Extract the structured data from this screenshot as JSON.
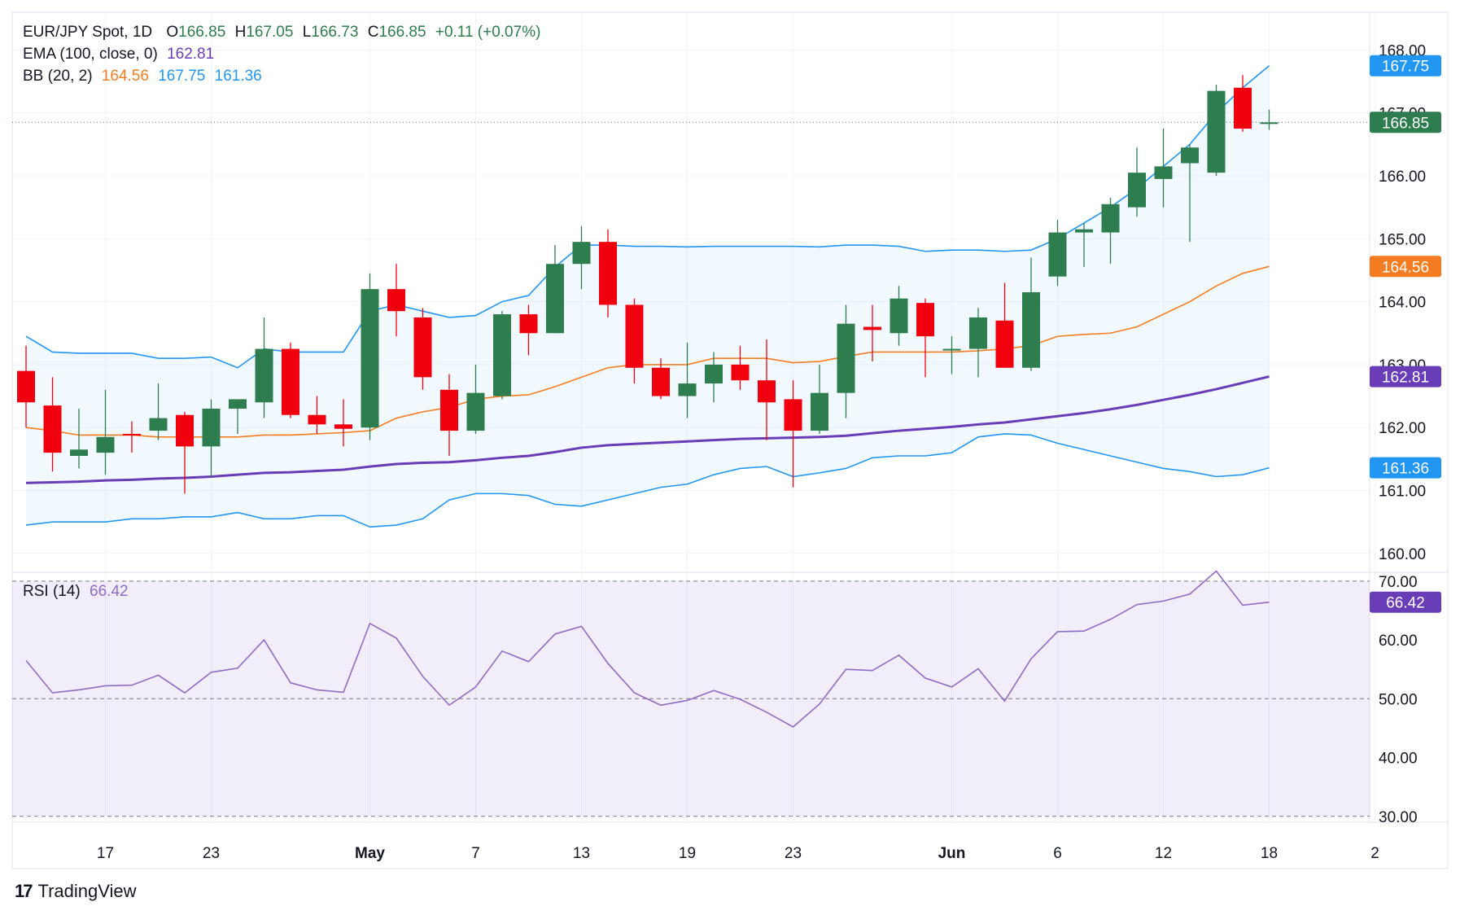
{
  "legend": {
    "symbol": "EUR/JPY Spot, 1D",
    "o_label": "O",
    "o_value": "166.85",
    "h_label": "H",
    "h_value": "167.05",
    "l_label": "L",
    "l_value": "166.73",
    "c_label": "C",
    "c_value": "166.85",
    "change": "+0.11 (+0.07%)",
    "ema_label": "EMA (100, close, 0)",
    "ema_value": "162.81",
    "bb_label": "BB (20, 2)",
    "bb_mid": "164.56",
    "bb_upper": "167.75",
    "bb_lower": "161.36",
    "rsi_label": "RSI (14)",
    "rsi_value": "66.42"
  },
  "footer": {
    "brand": "TradingView",
    "logo_text": "17"
  },
  "colors": {
    "up": "#2e7d4f",
    "down": "#f0000f",
    "ema": "#6a3db8",
    "bb_mid": "#f57c20",
    "bb_band": "#2196f3",
    "rsi": "#8e6bc4",
    "green_text": "#2e7d4f"
  },
  "chart_data": [
    {
      "type": "candlestick",
      "title": "EUR/JPY Spot, 1D",
      "ylim": [
        159.7,
        168.6
      ],
      "y_ticks": [
        "160.00",
        "161.00",
        "162.00",
        "163.00",
        "164.00",
        "165.00",
        "166.00",
        "167.00",
        "168.00"
      ],
      "x_ticks": [
        {
          "i": 3,
          "label": "17"
        },
        {
          "i": 7,
          "label": "23"
        },
        {
          "i": 13,
          "label": "May"
        },
        {
          "i": 17,
          "label": "7"
        },
        {
          "i": 21,
          "label": "13"
        },
        {
          "i": 25,
          "label": "19"
        },
        {
          "i": 29,
          "label": "23"
        },
        {
          "i": 35,
          "label": "Jun"
        },
        {
          "i": 39,
          "label": "6"
        },
        {
          "i": 43,
          "label": "12"
        },
        {
          "i": 47,
          "label": "18"
        },
        {
          "i": 51,
          "label": "2"
        }
      ],
      "price_labels": [
        {
          "value": 167.75,
          "text": "167.75",
          "color": "#2196f3"
        },
        {
          "value": 166.85,
          "text": "166.85",
          "color": "#2e7d4f"
        },
        {
          "value": 164.56,
          "text": "164.56",
          "color": "#f57c20"
        },
        {
          "value": 162.81,
          "text": "162.81",
          "color": "#6a3db8"
        },
        {
          "value": 161.36,
          "text": "161.36",
          "color": "#2196f3"
        }
      ],
      "last_price": 166.85,
      "candles": [
        {
          "i": 0,
          "o": 162.9,
          "h": 163.3,
          "l": 162.0,
          "c": 162.4
        },
        {
          "i": 1,
          "o": 162.35,
          "h": 162.8,
          "l": 161.3,
          "c": 161.6
        },
        {
          "i": 2,
          "o": 161.55,
          "h": 162.3,
          "l": 161.35,
          "c": 161.65
        },
        {
          "i": 3,
          "o": 161.6,
          "h": 162.6,
          "l": 161.25,
          "c": 161.85
        },
        {
          "i": 4,
          "o": 161.9,
          "h": 162.1,
          "l": 161.6,
          "c": 161.88
        },
        {
          "i": 5,
          "o": 161.95,
          "h": 162.7,
          "l": 161.8,
          "c": 162.15
        },
        {
          "i": 6,
          "o": 162.2,
          "h": 162.25,
          "l": 160.95,
          "c": 161.7
        },
        {
          "i": 7,
          "o": 161.7,
          "h": 162.45,
          "l": 161.2,
          "c": 162.3
        },
        {
          "i": 8,
          "o": 162.3,
          "h": 162.4,
          "l": 161.9,
          "c": 162.45
        },
        {
          "i": 9,
          "o": 162.4,
          "h": 163.75,
          "l": 162.15,
          "c": 163.25
        },
        {
          "i": 10,
          "o": 163.25,
          "h": 163.35,
          "l": 162.15,
          "c": 162.2
        },
        {
          "i": 11,
          "o": 162.2,
          "h": 162.5,
          "l": 161.9,
          "c": 162.05
        },
        {
          "i": 12,
          "o": 162.05,
          "h": 162.45,
          "l": 161.7,
          "c": 161.98
        },
        {
          "i": 13,
          "o": 162.0,
          "h": 164.45,
          "l": 161.8,
          "c": 164.2
        },
        {
          "i": 14,
          "o": 164.2,
          "h": 164.6,
          "l": 163.45,
          "c": 163.85
        },
        {
          "i": 15,
          "o": 163.75,
          "h": 163.9,
          "l": 162.6,
          "c": 162.8
        },
        {
          "i": 16,
          "o": 162.6,
          "h": 162.85,
          "l": 161.55,
          "c": 161.95
        },
        {
          "i": 17,
          "o": 161.95,
          "h": 163.0,
          "l": 161.9,
          "c": 162.55
        },
        {
          "i": 18,
          "o": 162.5,
          "h": 163.85,
          "l": 162.45,
          "c": 163.8
        },
        {
          "i": 19,
          "o": 163.8,
          "h": 163.95,
          "l": 163.15,
          "c": 163.5
        },
        {
          "i": 20,
          "o": 163.5,
          "h": 164.9,
          "l": 163.5,
          "c": 164.6
        },
        {
          "i": 21,
          "o": 164.6,
          "h": 165.2,
          "l": 164.2,
          "c": 164.95
        },
        {
          "i": 22,
          "o": 164.95,
          "h": 165.15,
          "l": 163.75,
          "c": 163.95
        },
        {
          "i": 23,
          "o": 163.95,
          "h": 164.05,
          "l": 162.7,
          "c": 162.95
        },
        {
          "i": 24,
          "o": 162.95,
          "h": 163.1,
          "l": 162.45,
          "c": 162.5
        },
        {
          "i": 25,
          "o": 162.5,
          "h": 163.35,
          "l": 162.15,
          "c": 162.7
        },
        {
          "i": 26,
          "o": 162.7,
          "h": 163.2,
          "l": 162.4,
          "c": 163.0
        },
        {
          "i": 27,
          "o": 163.0,
          "h": 163.3,
          "l": 162.6,
          "c": 162.75
        },
        {
          "i": 28,
          "o": 162.75,
          "h": 163.4,
          "l": 161.8,
          "c": 162.4
        },
        {
          "i": 29,
          "o": 162.45,
          "h": 162.75,
          "l": 161.05,
          "c": 161.95
        },
        {
          "i": 30,
          "o": 161.95,
          "h": 163.0,
          "l": 161.9,
          "c": 162.55
        },
        {
          "i": 31,
          "o": 162.55,
          "h": 163.95,
          "l": 162.15,
          "c": 163.65
        },
        {
          "i": 32,
          "o": 163.6,
          "h": 163.95,
          "l": 163.05,
          "c": 163.55
        },
        {
          "i": 33,
          "o": 163.5,
          "h": 164.25,
          "l": 163.3,
          "c": 164.05
        },
        {
          "i": 34,
          "o": 163.98,
          "h": 164.05,
          "l": 162.8,
          "c": 163.45
        },
        {
          "i": 35,
          "o": 163.25,
          "h": 163.45,
          "l": 162.85,
          "c": 163.25
        },
        {
          "i": 36,
          "o": 163.25,
          "h": 163.9,
          "l": 162.8,
          "c": 163.75
        },
        {
          "i": 37,
          "o": 163.7,
          "h": 164.3,
          "l": 162.95,
          "c": 162.95
        },
        {
          "i": 38,
          "o": 162.95,
          "h": 164.7,
          "l": 162.9,
          "c": 164.15
        },
        {
          "i": 39,
          "o": 164.4,
          "h": 165.3,
          "l": 164.25,
          "c": 165.1
        },
        {
          "i": 40,
          "o": 165.1,
          "h": 165.25,
          "l": 164.55,
          "c": 165.15
        },
        {
          "i": 41,
          "o": 165.1,
          "h": 165.65,
          "l": 164.6,
          "c": 165.55
        },
        {
          "i": 42,
          "o": 165.5,
          "h": 166.45,
          "l": 165.35,
          "c": 166.05
        },
        {
          "i": 43,
          "o": 165.95,
          "h": 166.75,
          "l": 165.5,
          "c": 166.15
        },
        {
          "i": 44,
          "o": 166.2,
          "h": 166.5,
          "l": 164.95,
          "c": 166.45
        },
        {
          "i": 45,
          "o": 166.05,
          "h": 167.45,
          "l": 166.0,
          "c": 167.35
        },
        {
          "i": 46,
          "o": 167.4,
          "h": 167.6,
          "l": 166.7,
          "c": 166.75
        },
        {
          "i": 47,
          "o": 166.85,
          "h": 167.05,
          "l": 166.73,
          "c": 166.85
        }
      ],
      "bb_upper": [
        163.45,
        163.2,
        163.18,
        163.18,
        163.18,
        163.1,
        163.1,
        163.12,
        162.95,
        163.25,
        163.2,
        163.2,
        163.2,
        163.85,
        163.95,
        163.85,
        163.75,
        163.78,
        164.0,
        164.1,
        164.55,
        164.9,
        164.9,
        164.88,
        164.88,
        164.87,
        164.88,
        164.88,
        164.88,
        164.88,
        164.87,
        164.9,
        164.9,
        164.88,
        164.8,
        164.82,
        164.82,
        164.8,
        164.82,
        165.0,
        165.25,
        165.5,
        165.8,
        166.15,
        166.5,
        167.0,
        167.4,
        167.75
      ],
      "bb_mid": [
        162.0,
        161.95,
        161.88,
        161.88,
        161.88,
        161.85,
        161.85,
        161.85,
        161.85,
        161.88,
        161.88,
        161.9,
        161.92,
        161.95,
        162.15,
        162.25,
        162.32,
        162.45,
        162.5,
        162.52,
        162.65,
        162.8,
        162.95,
        163.0,
        163.0,
        163.0,
        163.1,
        163.1,
        163.1,
        163.03,
        163.05,
        163.13,
        163.2,
        163.2,
        163.2,
        163.2,
        163.22,
        163.25,
        163.3,
        163.45,
        163.48,
        163.5,
        163.6,
        163.8,
        164.0,
        164.25,
        164.45,
        164.56
      ],
      "bb_lower": [
        160.45,
        160.5,
        160.5,
        160.5,
        160.55,
        160.55,
        160.58,
        160.58,
        160.65,
        160.55,
        160.55,
        160.6,
        160.6,
        160.42,
        160.45,
        160.55,
        160.85,
        160.95,
        160.95,
        160.92,
        160.78,
        160.75,
        160.85,
        160.95,
        161.05,
        161.1,
        161.25,
        161.35,
        161.38,
        161.22,
        161.28,
        161.35,
        161.52,
        161.55,
        161.55,
        161.6,
        161.85,
        161.9,
        161.88,
        161.75,
        161.65,
        161.55,
        161.45,
        161.35,
        161.3,
        161.22,
        161.25,
        161.36
      ],
      "ema": [
        161.12,
        161.13,
        161.14,
        161.16,
        161.17,
        161.19,
        161.2,
        161.22,
        161.25,
        161.28,
        161.29,
        161.31,
        161.33,
        161.38,
        161.42,
        161.44,
        161.45,
        161.48,
        161.52,
        161.55,
        161.61,
        161.68,
        161.72,
        161.74,
        161.76,
        161.78,
        161.8,
        161.82,
        161.83,
        161.84,
        161.85,
        161.87,
        161.91,
        161.95,
        161.98,
        162.01,
        162.05,
        162.08,
        162.13,
        162.18,
        162.23,
        162.29,
        162.36,
        162.44,
        162.52,
        162.61,
        162.71,
        162.81
      ],
      "x": [
        "",
        "",
        "",
        "17",
        "",
        "",
        "",
        "23",
        "",
        "",
        "",
        "",
        "",
        "May",
        "",
        "",
        "",
        "7",
        "",
        "",
        "",
        "13",
        "",
        "",
        "",
        "19",
        "",
        "",
        "",
        "23",
        "",
        "",
        "",
        "",
        "",
        "Jun",
        "",
        "",
        "",
        "6",
        "",
        "",
        "",
        "12",
        "",
        "",
        "",
        "18"
      ]
    },
    {
      "type": "line",
      "title": "RSI (14)",
      "ylim": [
        29.0,
        71.5
      ],
      "y_ticks": [
        "30.00",
        "40.00",
        "50.00",
        "60.00",
        "70.00"
      ],
      "levels": [
        30,
        50,
        70
      ],
      "values": [
        56.5,
        51.0,
        51.5,
        52.2,
        52.3,
        54.0,
        51.0,
        54.5,
        55.2,
        60.0,
        52.7,
        51.5,
        51.1,
        62.8,
        60.3,
        53.8,
        48.9,
        52.0,
        58.1,
        56.3,
        61.0,
        62.3,
        56.0,
        51.0,
        48.9,
        49.7,
        51.4,
        49.9,
        47.7,
        45.2,
        49.1,
        55.0,
        54.8,
        57.4,
        53.5,
        52.0,
        55.1,
        49.6,
        56.8,
        61.4,
        61.5,
        63.5,
        66.0,
        66.6,
        67.8,
        71.7,
        65.9,
        66.42
      ],
      "price_label": {
        "value": 66.42,
        "text": "66.42",
        "color": "#6a3db8"
      }
    }
  ]
}
